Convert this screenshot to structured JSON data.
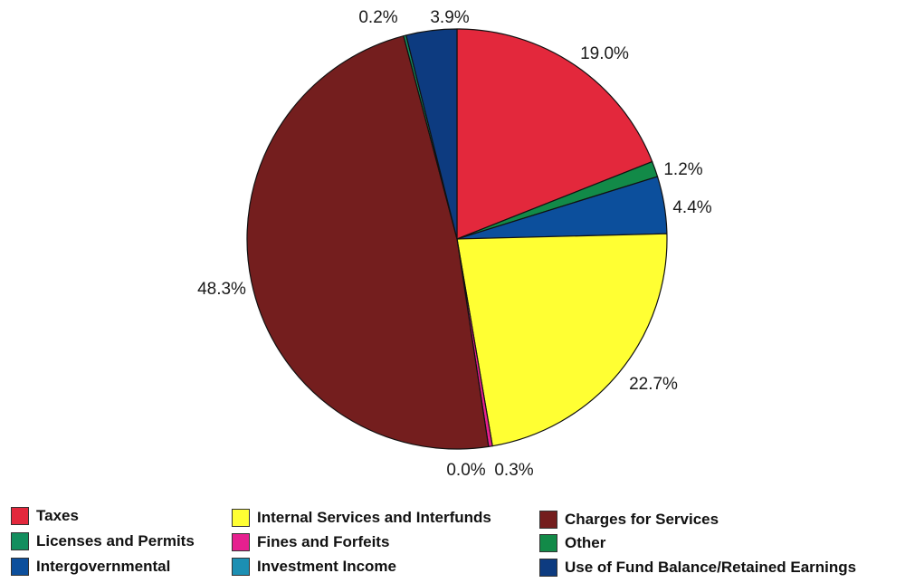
{
  "chart_data": {
    "type": "pie",
    "categories": [
      "Taxes",
      "Other",
      "Intergovernmental",
      "Internal Services and Interfunds",
      "Fines and Forfeits",
      "Investment Income",
      "Charges for Services",
      "Licenses and Permits",
      "Use of Fund Balance/Retained Earnings"
    ],
    "values": [
      19.0,
      1.2,
      4.4,
      22.7,
      0.3,
      0.0,
      48.3,
      0.2,
      3.9
    ],
    "labels": [
      "19.0%",
      "1.2%",
      "4.4%",
      "22.7%",
      "0.3%",
      "0.0%",
      "48.3%",
      "0.2%",
      "3.9%"
    ],
    "colors": [
      "#e3283c",
      "#128a48",
      "#0c4f9c",
      "#ffff33",
      "#e6208f",
      "#1c8fb3",
      "#741e1e",
      "#138e5e",
      "#0d3b80"
    ],
    "start_angle_deg": 0,
    "direction": "clockwise",
    "legend_position": "bottom"
  },
  "legend": {
    "items": [
      {
        "label": "Taxes",
        "color": "#e3283c"
      },
      {
        "label": "Licenses and Permits",
        "color": "#138e5e"
      },
      {
        "label": "Intergovernmental",
        "color": "#0c4f9c"
      },
      {
        "label": "Internal Services and Interfunds",
        "color": "#ffff33"
      },
      {
        "label": "Fines and Forfeits",
        "color": "#e6208f"
      },
      {
        "label": "Investment Income",
        "color": "#1c8fb3"
      },
      {
        "label": "Charges for Services",
        "color": "#741e1e"
      },
      {
        "label": "Other",
        "color": "#128a48"
      },
      {
        "label": "Use of Fund Balance/Retained Earnings",
        "color": "#0d3b80"
      }
    ]
  }
}
